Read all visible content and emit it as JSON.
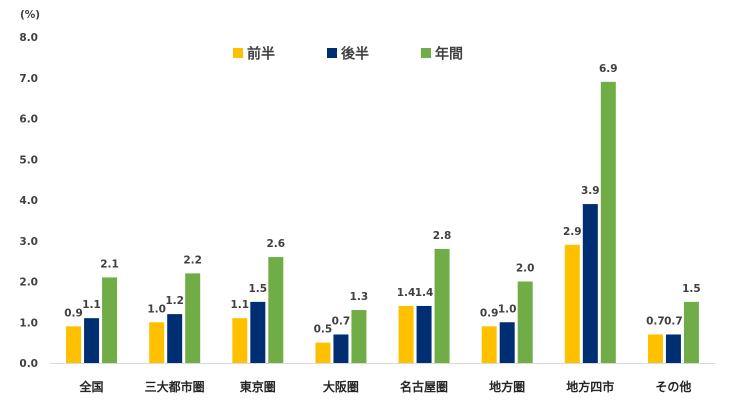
{
  "chart_data": {
    "type": "bar",
    "unit_label": "(%)",
    "categories": [
      "全国",
      "三大都市圏",
      "東京圏",
      "大阪圏",
      "名古屋圏",
      "地方圏",
      "地方四市",
      "その他"
    ],
    "series": [
      {
        "name": "前半",
        "color": "#FFC000",
        "values": [
          0.9,
          1.0,
          1.1,
          0.5,
          1.4,
          0.9,
          2.9,
          0.7
        ]
      },
      {
        "name": "後半",
        "color": "#002E73",
        "values": [
          1.1,
          1.2,
          1.5,
          0.7,
          1.4,
          1.0,
          3.9,
          0.7
        ]
      },
      {
        "name": "年間",
        "color": "#70AD47",
        "values": [
          2.1,
          2.2,
          2.6,
          1.3,
          2.8,
          2.0,
          6.9,
          1.5
        ]
      }
    ],
    "ylim": [
      0,
      8
    ],
    "y_ticks": [
      "0.0",
      "1.0",
      "2.0",
      "3.0",
      "4.0",
      "5.0",
      "6.0",
      "7.0",
      "8.0"
    ],
    "y_tick_values": [
      0,
      1,
      2,
      3,
      4,
      5,
      6,
      7,
      8
    ],
    "legend_position": "top",
    "grid": false
  }
}
